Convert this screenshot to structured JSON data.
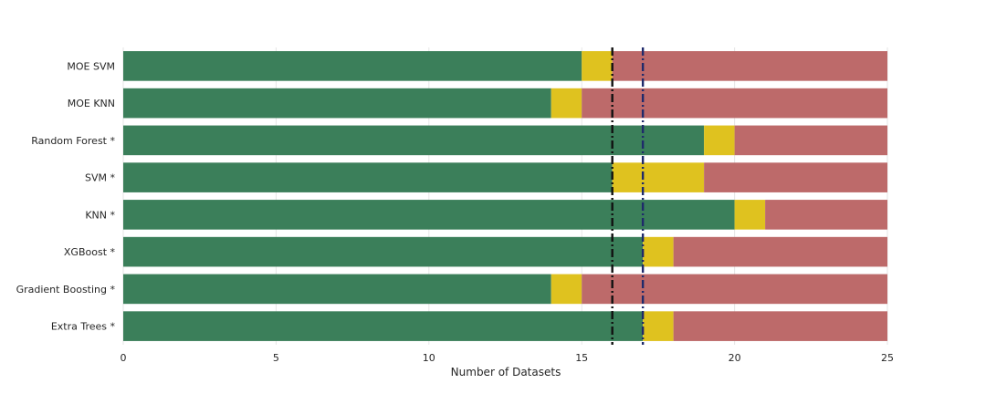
{
  "chart_data": {
    "type": "bar",
    "orientation": "horizontal",
    "stacked": true,
    "title": "",
    "xlabel": "Number of Datasets",
    "ylabel": "",
    "xlim": [
      0,
      25
    ],
    "xticks": [
      0,
      5,
      10,
      15,
      20,
      25
    ],
    "grid": true,
    "legend": "none",
    "categories": [
      "MOE SVM",
      "MOE KNN",
      "Random Forest *",
      "SVM *",
      "KNN *",
      "XGBoost *",
      "Gradient Boosting *",
      "Extra Trees *"
    ],
    "series": [
      {
        "name": "segment-green",
        "color": "#3b7f5a",
        "values": [
          15,
          14,
          19,
          16,
          20,
          17,
          14,
          17
        ]
      },
      {
        "name": "segment-yellow",
        "color": "#dfc21f",
        "values": [
          1,
          1,
          1,
          3,
          1,
          1,
          1,
          1
        ]
      },
      {
        "name": "segment-red",
        "color": "#bd6a6a",
        "values": [
          9,
          10,
          5,
          6,
          4,
          7,
          10,
          7
        ]
      }
    ],
    "reference_lines": [
      {
        "name": "reference-line-black",
        "x": 16,
        "color": "#111111",
        "style": "dashdot"
      },
      {
        "name": "reference-line-navy",
        "x": 17,
        "color": "#1f2a6b",
        "style": "dashdot"
      }
    ]
  }
}
